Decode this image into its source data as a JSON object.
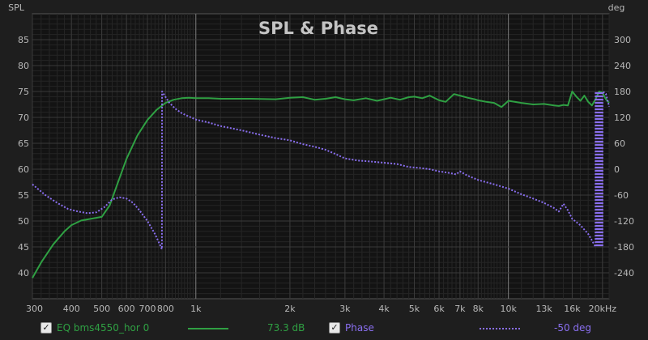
{
  "chart_data": {
    "type": "line",
    "title": "SPL & Phase",
    "left_axis_label": "SPL",
    "right_axis_label": "deg",
    "xscale": "log",
    "xlim": [
      300,
      21000
    ],
    "ylim_left": [
      35,
      90
    ],
    "ylim_right": [
      -300,
      360
    ],
    "x_ticks": [
      {
        "v": 300,
        "label": "300"
      },
      {
        "v": 400,
        "label": "400"
      },
      {
        "v": 500,
        "label": "500"
      },
      {
        "v": 600,
        "label": "600"
      },
      {
        "v": 700,
        "label": "700"
      },
      {
        "v": 800,
        "label": "800"
      },
      {
        "v": 1000,
        "label": "1k"
      },
      {
        "v": 2000,
        "label": "2k"
      },
      {
        "v": 3000,
        "label": "3k"
      },
      {
        "v": 4000,
        "label": "4k"
      },
      {
        "v": 5000,
        "label": "5k"
      },
      {
        "v": 6000,
        "label": "6k"
      },
      {
        "v": 7000,
        "label": "7k"
      },
      {
        "v": 8000,
        "label": "8k"
      },
      {
        "v": 10000,
        "label": "10k"
      },
      {
        "v": 13000,
        "label": "13k"
      },
      {
        "v": 16000,
        "label": "16k"
      },
      {
        "v": 20000,
        "label": "20kHz"
      }
    ],
    "y_ticks_left": [
      "40",
      "45",
      "50",
      "55",
      "60",
      "65",
      "70",
      "75",
      "80",
      "85"
    ],
    "y_ticks_right": [
      "-240",
      "-180",
      "-120",
      "-60",
      "0",
      "60",
      "120",
      "180",
      "240",
      "300"
    ],
    "series": [
      {
        "name": "EQ bms4550_hor 0",
        "axis": "left",
        "color": "#2fa043",
        "readout": "73.3 dB",
        "x": [
          300,
          320,
          350,
          380,
          400,
          430,
          460,
          500,
          530,
          560,
          600,
          650,
          700,
          750,
          800,
          850,
          900,
          950,
          1000,
          1100,
          1200,
          1500,
          1800,
          2000,
          2200,
          2400,
          2600,
          2800,
          3000,
          3200,
          3500,
          3800,
          4000,
          4200,
          4500,
          4800,
          5000,
          5300,
          5600,
          6000,
          6300,
          6700,
          7000,
          7400,
          7800,
          8000,
          8500,
          9000,
          9500,
          10000,
          11000,
          12000,
          13000,
          14000,
          14500,
          15000,
          15500,
          16000,
          16500,
          17000,
          17500,
          18000,
          18500,
          19000,
          19500,
          20000,
          20500,
          21000
        ],
        "values": [
          39,
          42,
          45.5,
          48,
          49.2,
          50.1,
          50.4,
          50.8,
          53,
          57,
          62,
          66.5,
          69.5,
          71.5,
          72.8,
          73.4,
          73.7,
          73.8,
          73.7,
          73.7,
          73.6,
          73.6,
          73.5,
          73.8,
          73.9,
          73.4,
          73.6,
          73.9,
          73.5,
          73.3,
          73.7,
          73.2,
          73.5,
          73.8,
          73.4,
          73.9,
          74,
          73.7,
          74.2,
          73.3,
          73,
          74.5,
          74.2,
          73.8,
          73.5,
          73.3,
          73,
          72.8,
          72,
          73.2,
          72.8,
          72.5,
          72.6,
          72.3,
          72.2,
          72.4,
          72.3,
          75,
          74,
          73.2,
          74.2,
          73,
          72.3,
          73.5,
          75,
          74.8,
          73.5,
          72.8
        ]
      },
      {
        "name": "Phase",
        "axis": "right",
        "color": "#8a6ff0",
        "readout": "-50 deg",
        "x": [
          300,
          330,
          360,
          390,
          420,
          450,
          480,
          510,
          540,
          570,
          600,
          630,
          660,
          700,
          740,
          779,
          780,
          820,
          860,
          900,
          950,
          1000,
          1100,
          1200,
          1400,
          1600,
          1800,
          2000,
          2200,
          2400,
          2600,
          2800,
          3000,
          3300,
          3600,
          4000,
          4400,
          4800,
          5200,
          5600,
          6000,
          6400,
          6800,
          7000,
          7400,
          8000,
          9000,
          10000,
          11000,
          12000,
          13000,
          14000,
          14500,
          15000,
          15500,
          16000,
          17000,
          18000,
          18500,
          19000,
          19010,
          19200,
          19210,
          19400,
          19410,
          19600,
          19610,
          19800,
          19810,
          20000,
          20010,
          20500,
          21000
        ],
        "values": [
          -35,
          -60,
          -78,
          -92,
          -98,
          -102,
          -100,
          -88,
          -70,
          -65,
          -68,
          -78,
          -95,
          -120,
          -150,
          -185,
          180,
          155,
          140,
          130,
          122,
          115,
          108,
          100,
          90,
          80,
          72,
          67,
          58,
          52,
          45,
          35,
          25,
          20,
          18,
          15,
          12,
          5,
          3,
          0,
          -5,
          -8,
          -12,
          -5,
          -15,
          -25,
          -35,
          -45,
          -58,
          -68,
          -78,
          -90,
          -98,
          -80,
          -95,
          -115,
          -130,
          -150,
          -165,
          -180,
          180,
          -180,
          180,
          -180,
          180,
          -180,
          180,
          -180,
          180,
          -180,
          180,
          175,
          145
        ]
      }
    ]
  }
}
